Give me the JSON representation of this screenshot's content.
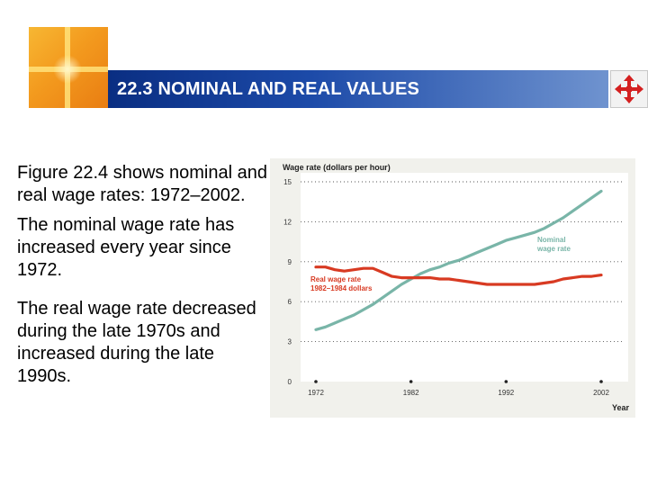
{
  "header": {
    "title": "22.3 NOMINAL AND REAL VALUES",
    "accent_color": "#1c4aa8",
    "logo_color": "#f39a1e",
    "nav_icon": "four-way-arrows-icon",
    "nav_icon_color": "#d42020"
  },
  "text": {
    "paragraphs": [
      "Figure 22.4 shows nominal and real wage rates: 1972–2002.",
      "The nominal wage rate has increased every year since 1972.",
      "The real wage rate decreased during the late 1970s and increased during the late 1990s."
    ]
  },
  "chart_data": {
    "type": "line",
    "ylabel": "Wage rate (dollars per hour)",
    "xlabel": "Year",
    "xlim": [
      1972,
      2002
    ],
    "ylim": [
      0,
      15
    ],
    "x_ticks": [
      1972,
      1982,
      1992,
      2002
    ],
    "y_ticks": [
      0,
      3,
      6,
      9,
      12,
      15
    ],
    "grid": "horizontal dotted",
    "series": [
      {
        "name": "Nominal wage rate",
        "label_lines": [
          "Nominal",
          "wage rate"
        ],
        "color": "#79b5a8",
        "x": [
          1972,
          1973,
          1974,
          1975,
          1976,
          1977,
          1978,
          1979,
          1980,
          1981,
          1982,
          1983,
          1984,
          1985,
          1986,
          1987,
          1988,
          1989,
          1990,
          1991,
          1992,
          1993,
          1994,
          1995,
          1996,
          1997,
          1998,
          1999,
          2000,
          2001,
          2002
        ],
        "values": [
          3.9,
          4.1,
          4.4,
          4.7,
          5.0,
          5.4,
          5.8,
          6.3,
          6.8,
          7.3,
          7.7,
          8.1,
          8.4,
          8.6,
          8.9,
          9.1,
          9.4,
          9.7,
          10.0,
          10.3,
          10.6,
          10.8,
          11.0,
          11.2,
          11.5,
          11.9,
          12.3,
          12.8,
          13.3,
          13.8,
          14.3
        ]
      },
      {
        "name": "Real wage rate (1982–1984 dollars)",
        "label_lines": [
          "Real wage rate",
          "1982–1984 dollars"
        ],
        "color": "#d83a22",
        "x": [
          1972,
          1973,
          1974,
          1975,
          1976,
          1977,
          1978,
          1979,
          1980,
          1981,
          1982,
          1983,
          1984,
          1985,
          1986,
          1987,
          1988,
          1989,
          1990,
          1991,
          1992,
          1993,
          1994,
          1995,
          1996,
          1997,
          1998,
          1999,
          2000,
          2001,
          2002
        ],
        "values": [
          8.6,
          8.6,
          8.4,
          8.3,
          8.4,
          8.5,
          8.5,
          8.2,
          7.9,
          7.8,
          7.8,
          7.8,
          7.8,
          7.7,
          7.7,
          7.6,
          7.5,
          7.4,
          7.3,
          7.3,
          7.3,
          7.3,
          7.3,
          7.3,
          7.4,
          7.5,
          7.7,
          7.8,
          7.9,
          7.9,
          8.0
        ]
      }
    ]
  }
}
